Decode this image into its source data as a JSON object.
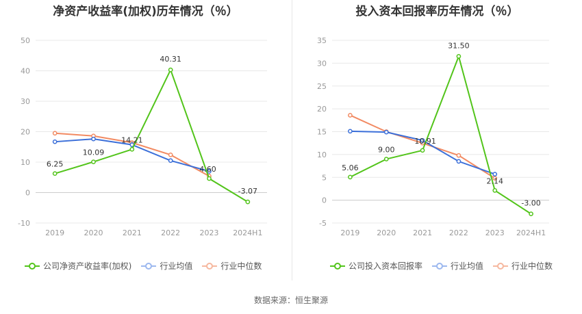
{
  "footer": {
    "source": "数据来源：恒生聚源"
  },
  "colors": {
    "company": "#52c41a",
    "avg": "#3b6fd9",
    "median": "#f28a62",
    "grid": "#e8e8e8",
    "axis": "#cccccc"
  },
  "chart_data": [
    {
      "type": "line",
      "title": "净资产收益率(加权)历年情况（％）",
      "categories": [
        "2019",
        "2020",
        "2021",
        "2022",
        "2023",
        "2024H1"
      ],
      "ylim": [
        -10,
        50
      ],
      "yticks": [
        -10,
        0,
        10,
        20,
        30,
        40,
        50
      ],
      "series": [
        {
          "name": "公司净资产收益率(加权)",
          "key": "company",
          "values": [
            6.25,
            10.09,
            14.21,
            40.31,
            4.6,
            -3.07
          ],
          "labels": [
            "6.25",
            "10.09",
            "14.21",
            "40.31",
            "4.60",
            "-3.07"
          ]
        },
        {
          "name": "行业均值",
          "key": "avg",
          "values": [
            16.7,
            17.6,
            15.7,
            10.5,
            7.0,
            null
          ]
        },
        {
          "name": "行业中位数",
          "key": "median",
          "values": [
            19.5,
            18.6,
            16.4,
            12.4,
            5.4,
            null
          ]
        }
      ]
    },
    {
      "type": "line",
      "title": "投入资本回报率历年情况（％）",
      "categories": [
        "2019",
        "2020",
        "2021",
        "2022",
        "2023",
        "2024H1"
      ],
      "ylim": [
        -5,
        35
      ],
      "yticks": [
        -5,
        0,
        5,
        10,
        15,
        20,
        25,
        30,
        35
      ],
      "series": [
        {
          "name": "公司投入资本回报率",
          "key": "company",
          "values": [
            5.06,
            9.0,
            10.91,
            31.5,
            2.14,
            -3.0
          ],
          "labels": [
            "5.06",
            "9.00",
            "10.91",
            "31.50",
            "2.14",
            "-3.00"
          ]
        },
        {
          "name": "行业均值",
          "key": "avg",
          "values": [
            15.1,
            14.9,
            13.1,
            8.5,
            5.7,
            null
          ]
        },
        {
          "name": "行业中位数",
          "key": "median",
          "values": [
            18.6,
            15.0,
            12.5,
            9.8,
            4.8,
            null
          ]
        }
      ]
    }
  ]
}
